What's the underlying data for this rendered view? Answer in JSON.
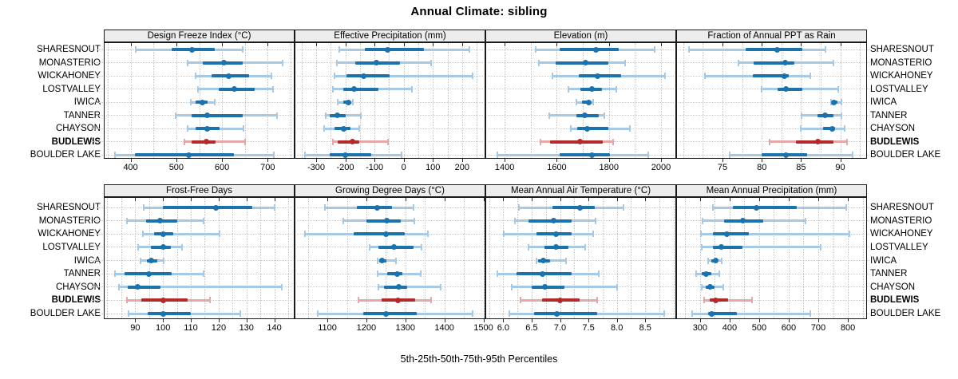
{
  "title": "Annual Climate: sibling",
  "caption": "5th-25th-50th-75th-95th Percentiles",
  "colors": {
    "blue": "#1b72ad",
    "blue_light": "#a8c9e4",
    "red": "#b32a2a",
    "red_light": "#e4a8a8",
    "strip_bg": "#ededed",
    "panel_border": "#1a1a1a",
    "grid": "#c6c6c6",
    "text": "#000000"
  },
  "chart_data": {
    "type": "interval-dot-trellis",
    "percentiles": [
      5,
      25,
      50,
      75,
      95
    ],
    "sites": [
      "SHARESNOUT",
      "MONASTERIO",
      "WICKAHONEY",
      "LOSTVALLEY",
      "IWICA",
      "TANNER",
      "CHAYSON",
      "BUDLEWIS",
      "BOULDER LAKE"
    ],
    "highlight_site": "BUDLEWIS",
    "panels": [
      {
        "title": "Design Freeze Index (°C)",
        "row": 0,
        "col": 0,
        "xlim": [
          343,
          757
        ],
        "ticks": [
          400,
          500,
          600,
          700
        ],
        "tick_labels": [
          "400",
          "500",
          "600",
          "700"
        ],
        "grid_step": 50,
        "values": [
          [
            411,
            489,
            535,
            584,
            645
          ],
          [
            524,
            557,
            605,
            645,
            733
          ],
          [
            542,
            577,
            615,
            659,
            708
          ],
          [
            547,
            592,
            626,
            671,
            712
          ],
          [
            531,
            542,
            557,
            568,
            584
          ],
          [
            498,
            533,
            568,
            645,
            720
          ],
          [
            524,
            542,
            568,
            594,
            647
          ],
          [
            517,
            533,
            566,
            586,
            650
          ],
          [
            366,
            410,
            528,
            626,
            714
          ]
        ]
      },
      {
        "title": "Effective Precipitation (mm)",
        "row": 0,
        "col": 1,
        "xlim": [
          -371,
          277
        ],
        "ticks": [
          -300,
          -200,
          -100,
          0,
          100,
          200
        ],
        "tick_labels": [
          "-300",
          "-200",
          "-100",
          "0",
          "100",
          "200"
        ],
        "grid_step": 50,
        "values": [
          [
            -220,
            -132,
            -55,
            69,
            225
          ],
          [
            -228,
            -165,
            -93,
            -14,
            93
          ],
          [
            -236,
            -195,
            -137,
            -47,
            236
          ],
          [
            -242,
            -206,
            -170,
            -88,
            27
          ],
          [
            -225,
            -206,
            -190,
            -184,
            -173
          ],
          [
            -266,
            -253,
            -228,
            -198,
            -146
          ],
          [
            -272,
            -236,
            -206,
            -181,
            -151
          ],
          [
            -242,
            -225,
            -176,
            -151,
            -55
          ],
          [
            -338,
            -253,
            -201,
            -110,
            -8
          ]
        ]
      },
      {
        "title": "Elevation (m)",
        "row": 0,
        "col": 2,
        "xlim": [
          1329,
          2055
        ],
        "ticks": [
          1400,
          1600,
          1800,
          2000
        ],
        "tick_labels": [
          "1400",
          "1600",
          "1800",
          "2000"
        ],
        "grid_step": 100,
        "values": [
          [
            1520,
            1612,
            1751,
            1837,
            1975
          ],
          [
            1530,
            1597,
            1711,
            1797,
            1862
          ],
          [
            1582,
            1683,
            1757,
            1846,
            2015
          ],
          [
            1646,
            1689,
            1735,
            1772,
            1828
          ],
          [
            1674,
            1698,
            1723,
            1730,
            1738
          ],
          [
            1572,
            1674,
            1708,
            1760,
            1782
          ],
          [
            1655,
            1677,
            1717,
            1797,
            1880
          ],
          [
            1538,
            1575,
            1689,
            1775,
            1815
          ],
          [
            1372,
            1612,
            1735,
            1803,
            1951
          ]
        ]
      },
      {
        "title": "Fraction of Annual PPT as Rain",
        "row": 0,
        "col": 3,
        "xlim": [
          69.2,
          93.3
        ],
        "ticks": [
          75,
          80,
          85,
          90
        ],
        "tick_labels": [
          "75",
          "80",
          "85",
          "90"
        ],
        "grid_step": 2.5,
        "values": [
          [
            70.7,
            77.9,
            82,
            85.2,
            88.1
          ],
          [
            77,
            79,
            83,
            84.1,
            89.1
          ],
          [
            72.8,
            78.9,
            82.9,
            83.4,
            86.2
          ],
          [
            80,
            82,
            83.1,
            85.2,
            89.7
          ],
          [
            88.8,
            89,
            89.2,
            89.6,
            90.1
          ],
          [
            85.1,
            87.1,
            88.1,
            89.1,
            90.1
          ],
          [
            85,
            87.8,
            89,
            89.3,
            90.6
          ],
          [
            81,
            84.4,
            87.1,
            89.1,
            90.9
          ],
          [
            75.9,
            80,
            83.1,
            85.8,
            91.6
          ]
        ]
      },
      {
        "title": "Frost-Free Days",
        "row": 1,
        "col": 0,
        "xlim": [
          79,
          147
        ],
        "ticks": [
          90,
          100,
          110,
          120,
          130,
          140
        ],
        "tick_labels": [
          "90",
          "100",
          "110",
          "120",
          "130",
          "140"
        ],
        "grid_step": 5,
        "values": [
          [
            93,
            100,
            119,
            132,
            140
          ],
          [
            87,
            94,
            99,
            105,
            114.5
          ],
          [
            92.7,
            96.7,
            100,
            103.6,
            120.2
          ],
          [
            91,
            95.6,
            100,
            102.7,
            106.8
          ],
          [
            91.8,
            94.1,
            95.8,
            97.8,
            100.1
          ],
          [
            82.6,
            86.3,
            95,
            103,
            114.5
          ],
          [
            84.3,
            87.2,
            91,
            99,
            142.6
          ],
          [
            86.9,
            92.1,
            100,
            108.8,
            116.8
          ],
          [
            87.5,
            94.4,
            100,
            110,
            127.7
          ]
        ]
      },
      {
        "title": "Growing Degree Days (°C)",
        "row": 1,
        "col": 1,
        "xlim": [
          1018,
          1503
        ],
        "ticks": [
          1100,
          1200,
          1300,
          1400,
          1500
        ],
        "tick_labels": [
          "1100",
          "1200",
          "1300",
          "1400",
          "1500"
        ],
        "grid_step": 50,
        "values": [
          [
            1094,
            1176,
            1228,
            1266,
            1320
          ],
          [
            1141,
            1201,
            1252,
            1289,
            1322
          ],
          [
            1043,
            1168,
            1250,
            1299,
            1357
          ],
          [
            1209,
            1231,
            1270,
            1320,
            1342
          ],
          [
            1228,
            1233,
            1240,
            1252,
            1275
          ],
          [
            1229,
            1254,
            1279,
            1293,
            1340
          ],
          [
            1231,
            1246,
            1283,
            1305,
            1390
          ],
          [
            1180,
            1238,
            1280,
            1324,
            1365
          ],
          [
            1075,
            1192,
            1250,
            1330,
            1472
          ]
        ]
      },
      {
        "title": "Mean Annual Air Temperature (°C)",
        "row": 1,
        "col": 2,
        "xlim": [
          5.7,
          9.03
        ],
        "ticks": [
          6,
          6.5,
          7,
          7.5,
          8,
          8.5
        ],
        "tick_labels": [
          "6.0",
          "6.5",
          "7.0",
          "7.5",
          "8.0",
          "8.5"
        ],
        "grid_step": 0.25,
        "values": [
          [
            6.27,
            6.87,
            7.35,
            7.61,
            8.11
          ],
          [
            6.21,
            6.45,
            6.89,
            7.2,
            7.63
          ],
          [
            6.01,
            6.59,
            6.93,
            7.21,
            7.58
          ],
          [
            6.45,
            6.73,
            6.93,
            7.15,
            7.44
          ],
          [
            6.58,
            6.62,
            6.7,
            6.82,
            7.1
          ],
          [
            5.89,
            6.23,
            6.69,
            7.21,
            7.68
          ],
          [
            6.15,
            6.5,
            6.73,
            7.08,
            8.0
          ],
          [
            6.3,
            6.68,
            7.0,
            7.35,
            7.65
          ],
          [
            6.11,
            6.54,
            6.95,
            7.65,
            8.84
          ]
        ]
      },
      {
        "title": "Mean Annual Precipitation (mm)",
        "row": 1,
        "col": 3,
        "xlim": [
          222,
          862
        ],
        "ticks": [
          300,
          400,
          500,
          600,
          700,
          800
        ],
        "tick_labels": [
          "300",
          "400",
          "500",
          "600",
          "700",
          "800"
        ],
        "grid_step": 50,
        "values": [
          [
            344,
            412,
            490,
            628,
            795
          ],
          [
            308,
            381,
            446,
            514,
            657
          ],
          [
            303,
            344,
            391,
            464,
            805
          ],
          [
            305,
            344,
            372,
            443,
            709
          ],
          [
            326,
            339,
            352,
            360,
            373
          ],
          [
            287,
            305,
            321,
            339,
            365
          ],
          [
            305,
            318,
            334,
            349,
            378
          ],
          [
            313,
            334,
            352,
            396,
            477
          ],
          [
            274,
            326,
            339,
            425,
            672
          ]
        ]
      }
    ]
  }
}
